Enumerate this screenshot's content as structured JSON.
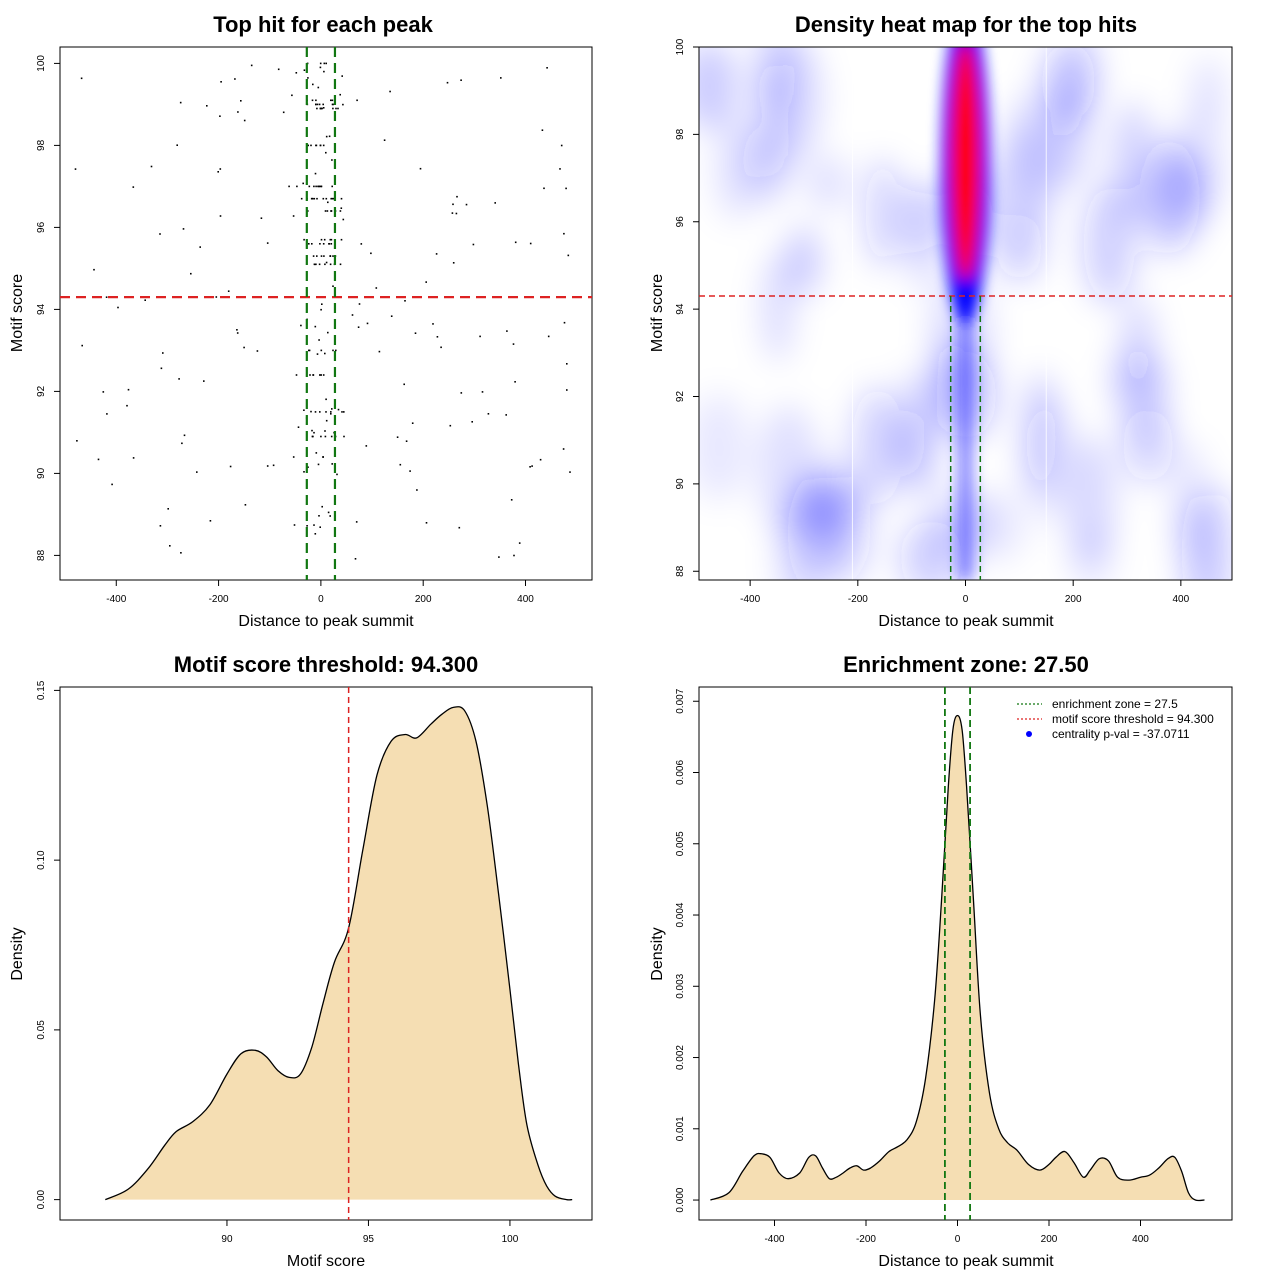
{
  "chart_data": [
    {
      "type": "scatter",
      "title": "Top hit for each peak",
      "xlabel": "Distance to peak summit",
      "ylabel": "Motif score",
      "xlim": [
        -510,
        530
      ],
      "ylim": [
        87.4,
        100.4
      ],
      "xticks": [
        -400,
        -200,
        0,
        200,
        400
      ],
      "yticks": [
        88,
        90,
        92,
        94,
        96,
        98,
        100
      ],
      "threshold": 94.3,
      "zone": [
        -27.5,
        27.5
      ],
      "colors": {
        "threshold": "#dd2222",
        "zone": "#117711",
        "points": "#000000"
      }
    },
    {
      "type": "heatmap",
      "title": "Density heat map for the top hits",
      "xlabel": "Distance to peak summit",
      "ylabel": "Motif score",
      "xlim": [
        -495,
        495
      ],
      "ylim": [
        87.8,
        100
      ],
      "xticks": [
        -400,
        -200,
        0,
        200,
        400
      ],
      "yticks": [
        88,
        90,
        92,
        94,
        96,
        98,
        100
      ],
      "threshold": 94.3,
      "zone": [
        -27.5,
        27.5
      ],
      "colors": {
        "low": "#ffffff",
        "mid": "#0000ff",
        "high": "#ff0000",
        "threshold": "#dd2222",
        "zone": "#117711"
      }
    },
    {
      "type": "area",
      "title": "Motif score threshold: 94.300",
      "xlabel": "Motif score",
      "ylabel": "Density",
      "xlim": [
        84.1,
        102.9
      ],
      "ylim": [
        -0.006,
        0.151
      ],
      "xticks": [
        90,
        95,
        100
      ],
      "yticks": [
        0.0,
        0.05,
        0.1,
        0.15
      ],
      "ytick_labels": [
        "0.00",
        "0.05",
        "0.10",
        "0.15"
      ],
      "threshold": 94.3,
      "x": [
        85.7,
        86.5,
        87.2,
        87.8,
        88.2,
        88.8,
        89.4,
        90.0,
        90.5,
        91.0,
        91.4,
        91.8,
        92.2,
        92.6,
        93.0,
        93.4,
        93.8,
        94.3,
        94.8,
        95.3,
        95.8,
        96.3,
        96.7,
        97.2,
        97.6,
        98.0,
        98.4,
        98.8,
        99.2,
        99.6,
        100.0,
        100.3,
        100.6,
        101.0,
        101.3,
        101.6,
        102.0,
        102.2
      ],
      "y": [
        0.0,
        0.003,
        0.009,
        0.016,
        0.02,
        0.023,
        0.028,
        0.037,
        0.043,
        0.044,
        0.042,
        0.038,
        0.036,
        0.037,
        0.045,
        0.058,
        0.07,
        0.08,
        0.103,
        0.125,
        0.135,
        0.137,
        0.136,
        0.14,
        0.143,
        0.145,
        0.144,
        0.135,
        0.116,
        0.09,
        0.062,
        0.04,
        0.022,
        0.01,
        0.004,
        0.001,
        0.0,
        0.0
      ],
      "colors": {
        "fill": "#f5deb3",
        "line": "#000000",
        "threshold": "#dd2222"
      }
    },
    {
      "type": "area",
      "title": "Enrichment zone: 27.50",
      "xlabel": "Distance to peak summit",
      "ylabel": "Density",
      "xlim": [
        -565,
        600
      ],
      "ylim": [
        -0.00028,
        0.0072
      ],
      "xticks": [
        -400,
        -200,
        0,
        200,
        400
      ],
      "yticks": [
        0.0,
        0.001,
        0.002,
        0.003,
        0.004,
        0.005,
        0.006,
        0.007
      ],
      "ytick_labels": [
        "0.000",
        "0.001",
        "0.002",
        "0.003",
        "0.004",
        "0.005",
        "0.006",
        "0.007"
      ],
      "zone": [
        -27.5,
        27.5
      ],
      "threshold": 94.3,
      "x": [
        -540,
        -500,
        -470,
        -445,
        -430,
        -410,
        -390,
        -370,
        -345,
        -325,
        -310,
        -295,
        -280,
        -265,
        -250,
        -235,
        -220,
        -205,
        -190,
        -170,
        -150,
        -130,
        -110,
        -90,
        -70,
        -50,
        -35,
        -20,
        -10,
        0,
        10,
        20,
        35,
        50,
        70,
        90,
        110,
        130,
        155,
        180,
        200,
        215,
        235,
        255,
        275,
        290,
        310,
        330,
        350,
        375,
        400,
        420,
        440,
        460,
        475,
        490,
        505,
        520,
        540
      ],
      "y": [
        0.0,
        0.0001,
        0.0004,
        0.00062,
        0.00065,
        0.0006,
        0.00038,
        0.0003,
        0.00038,
        0.0006,
        0.00062,
        0.00045,
        0.0003,
        0.00032,
        0.00038,
        0.00045,
        0.00048,
        0.00042,
        0.00045,
        0.00055,
        0.00068,
        0.00075,
        0.00085,
        0.0011,
        0.0017,
        0.0028,
        0.0042,
        0.0058,
        0.0066,
        0.0068,
        0.0066,
        0.0058,
        0.0042,
        0.0026,
        0.0015,
        0.001,
        0.0008,
        0.0007,
        0.0005,
        0.00042,
        0.0005,
        0.0006,
        0.00068,
        0.00052,
        0.00032,
        0.00042,
        0.00058,
        0.00055,
        0.00032,
        0.00028,
        0.00032,
        0.00035,
        0.00045,
        0.00058,
        0.0006,
        0.0004,
        0.0001,
        0.0,
        0.0
      ],
      "colors": {
        "fill": "#f5deb3",
        "line": "#000000",
        "zone": "#117711",
        "threshold": "#dd2222",
        "pval": "#0000ff"
      },
      "legend": {
        "placement": "top-right",
        "entries": [
          {
            "label": "enrichment zone = 27.5",
            "color": "#117711",
            "style": "dotted"
          },
          {
            "label": "motif score threshold = 94.300",
            "color": "#dd2222",
            "style": "dotted"
          },
          {
            "label": "centrality p-val = -37.0711",
            "color": "#0000ff",
            "style": "dot"
          }
        ]
      }
    }
  ]
}
